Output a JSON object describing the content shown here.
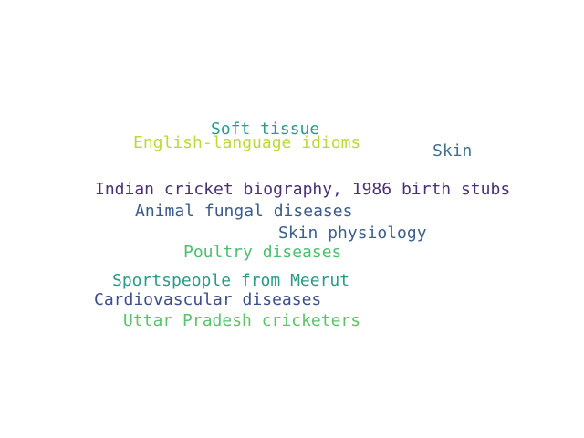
{
  "words": [
    {
      "text": "Soft tissue",
      "color": "#2a9a8e"
    },
    {
      "text": "English-language idioms",
      "color": "#bcd93a"
    },
    {
      "text": "Skin",
      "color": "#3f6e8f"
    },
    {
      "text": "Indian cricket biography, 1986 birth stubs",
      "color": "#4a2f78"
    },
    {
      "text": "Animal fungal diseases",
      "color": "#3a5a8c"
    },
    {
      "text": "Skin physiology",
      "color": "#3a5f8c"
    },
    {
      "text": "Poultry diseases",
      "color": "#4cbf6e"
    },
    {
      "text": "Sportspeople from Meerut",
      "color": "#2a9a85"
    },
    {
      "text": "Cardiovascular diseases",
      "color": "#3d4d8c"
    },
    {
      "text": "Uttar Pradesh cricketers",
      "color": "#5cc26a"
    }
  ]
}
